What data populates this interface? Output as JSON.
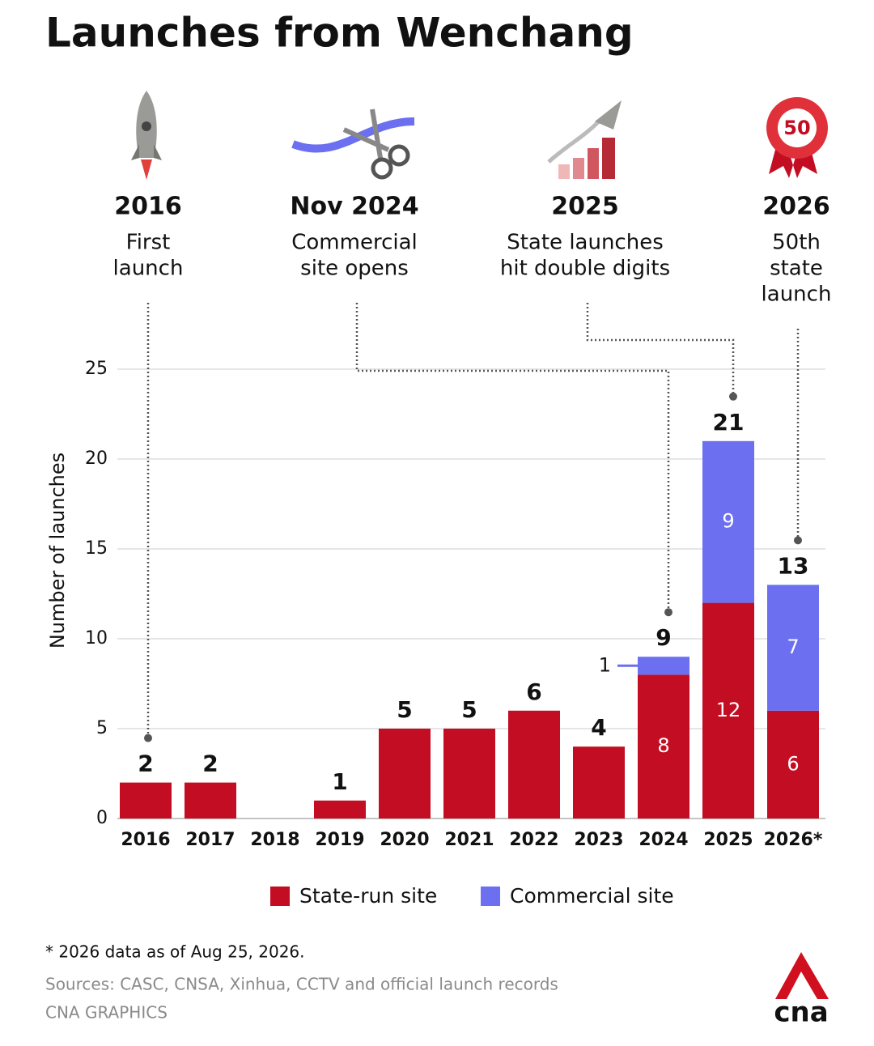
{
  "chart_data": {
    "type": "stacked_bar",
    "title": "Launches from Wenchang",
    "categories": [
      "2016",
      "2017",
      "2018",
      "2019",
      "2020",
      "2021",
      "2022",
      "2023",
      "2024",
      "2025",
      "2026*"
    ],
    "series": [
      {
        "name": "State-run site",
        "color": "#c30d23",
        "values": [
          2,
          2,
          0,
          1,
          5,
          5,
          6,
          4,
          8,
          12,
          6
        ],
        "value_labels": [
          null,
          null,
          null,
          null,
          null,
          null,
          null,
          null,
          "8",
          "12",
          "6"
        ]
      },
      {
        "name": "Commercial site",
        "color": "#6b6ff0",
        "values": [
          0,
          0,
          0,
          0,
          0,
          0,
          0,
          0,
          1,
          9,
          7
        ],
        "value_labels": [
          null,
          null,
          null,
          null,
          null,
          null,
          null,
          null,
          "1",
          "9",
          "7"
        ]
      }
    ],
    "total_labels": [
      "2",
      "2",
      null,
      "1",
      "5",
      "5",
      "6",
      "4",
      "9",
      "21",
      "13"
    ],
    "y_axis_label": "Number of launches",
    "ylim": [
      0,
      25
    ],
    "yticks": [
      0,
      5,
      10,
      15,
      20,
      25
    ],
    "grid": true,
    "milestones": [
      {
        "title": "2016",
        "text": [
          "First",
          "launch"
        ],
        "category": "2016"
      },
      {
        "title": "Nov 2024",
        "text": [
          "Commercial",
          "site opens"
        ],
        "category": "2024"
      },
      {
        "title": "2025",
        "text": [
          "State launches",
          "hit double digits"
        ],
        "category": "2025"
      },
      {
        "title": "2026",
        "text": [
          "50th",
          "state",
          "launch"
        ],
        "category": "2026*",
        "badge": "50"
      }
    ],
    "footnote": "* 2026 data as of Aug 25, 2026.",
    "sources": "Sources: CASC, CNSA, Xinhua, CCTV and official launch records",
    "credit": "CNA GRAPHICS",
    "logo": "cna"
  }
}
